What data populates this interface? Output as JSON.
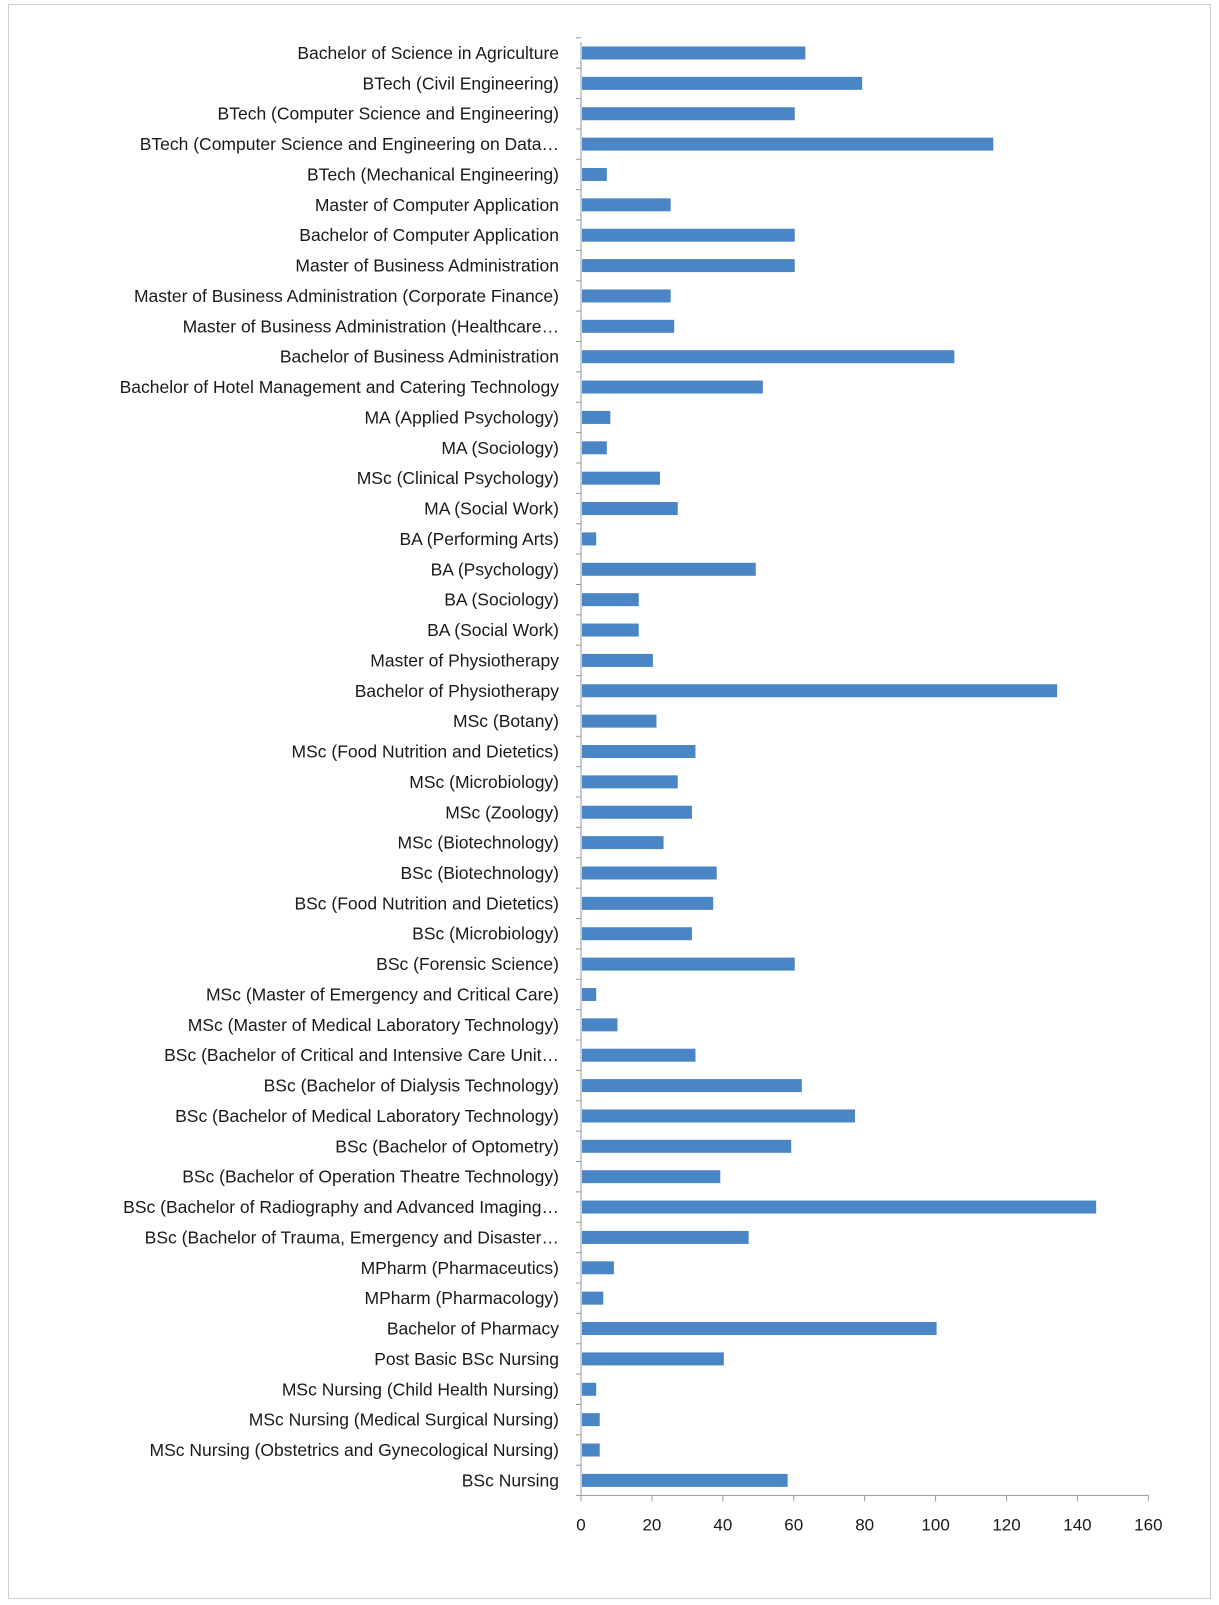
{
  "chart_data": {
    "type": "bar",
    "orientation": "horizontal",
    "categories": [
      "Bachelor of Science in Agriculture",
      "BTech (Civil Engineering)",
      "BTech (Computer Science and Engineering)",
      "BTech (Computer Science and Engineering on Data…",
      "BTech (Mechanical Engineering)",
      "Master of Computer Application",
      "Bachelor of Computer Application",
      "Master of Business Administration",
      "Master of Business Administration (Corporate Finance)",
      "Master of Business Administration (Healthcare…",
      "Bachelor of Business Administration",
      "Bachelor of Hotel Management and Catering Technology",
      "MA (Applied Psychology)",
      "MA (Sociology)",
      "MSc (Clinical Psychology)",
      "MA (Social Work)",
      "BA (Performing Arts)",
      "BA (Psychology)",
      "BA (Sociology)",
      "BA (Social Work)",
      "Master of Physiotherapy",
      "Bachelor of Physiotherapy",
      "MSc (Botany)",
      "MSc (Food Nutrition and Dietetics)",
      "MSc (Microbiology)",
      "MSc (Zoology)",
      "MSc (Biotechnology)",
      "BSc (Biotechnology)",
      "BSc (Food Nutrition and Dietetics)",
      "BSc (Microbiology)",
      "BSc (Forensic Science)",
      "MSc (Master of Emergency and Critical Care)",
      "MSc (Master of Medical Laboratory Technology)",
      "BSc (Bachelor of Critical and Intensive Care Unit…",
      "BSc (Bachelor of Dialysis Technology)",
      "BSc (Bachelor of Medical Laboratory Technology)",
      "BSc (Bachelor of Optometry)",
      "BSc (Bachelor of Operation Theatre Technology)",
      "BSc (Bachelor of Radiography and Advanced Imaging…",
      "BSc (Bachelor of Trauma, Emergency and Disaster…",
      "MPharm (Pharmaceutics)",
      "MPharm (Pharmacology)",
      "Bachelor of Pharmacy",
      "Post Basic BSc Nursing",
      "MSc Nursing (Child Health Nursing)",
      "MSc Nursing (Medical Surgical Nursing)",
      "MSc Nursing (Obstetrics and Gynecological Nursing)",
      "BSc Nursing"
    ],
    "values": [
      63,
      79,
      60,
      116,
      7,
      25,
      60,
      60,
      25,
      26,
      105,
      51,
      8,
      7,
      22,
      27,
      4,
      49,
      16,
      16,
      20,
      134,
      21,
      32,
      27,
      31,
      23,
      38,
      37,
      31,
      60,
      4,
      10,
      32,
      62,
      77,
      59,
      39,
      145,
      47,
      9,
      6,
      100,
      40,
      4,
      5,
      5,
      58
    ],
    "xlim": [
      0,
      160
    ],
    "xticks": [
      "0",
      "20",
      "40",
      "60",
      "80",
      "100",
      "120",
      "140",
      "160"
    ],
    "title": "",
    "xlabel": "",
    "ylabel": "",
    "grid": false,
    "legend": "none",
    "bar_color": "#4a86c5"
  }
}
